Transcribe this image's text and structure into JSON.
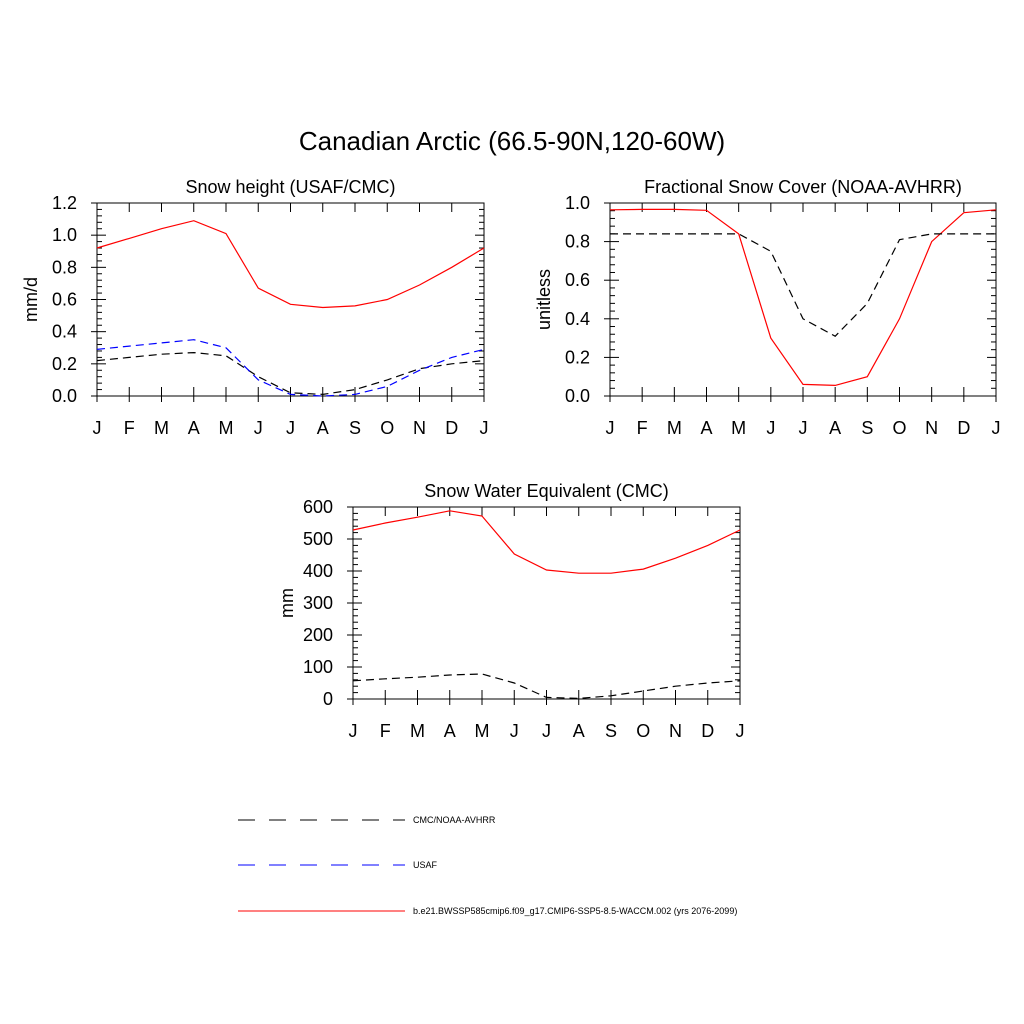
{
  "title": "Canadian Arctic (66.5-90N,120-60W)",
  "chart_data": [
    {
      "type": "line",
      "title": "Snow height (USAF/CMC)",
      "xlabel": "",
      "ylabel": "mm/d",
      "categories": [
        "J",
        "F",
        "M",
        "A",
        "M",
        "J",
        "J",
        "A",
        "S",
        "O",
        "N",
        "D",
        "J"
      ],
      "ylim": [
        0,
        1.2
      ],
      "yticks": [
        "0.0",
        "0.2",
        "0.4",
        "0.6",
        "0.8",
        "1.0",
        "1.2"
      ],
      "ytick_values": [
        0,
        0.2,
        0.4,
        0.6,
        0.8,
        1.0,
        1.2
      ],
      "series": [
        {
          "ref": "model",
          "values": [
            0.92,
            0.98,
            1.04,
            1.09,
            1.01,
            0.67,
            0.57,
            0.55,
            0.56,
            0.6,
            0.69,
            0.8,
            0.92
          ]
        },
        {
          "ref": "cmc",
          "values": [
            0.22,
            0.24,
            0.26,
            0.27,
            0.25,
            0.12,
            0.02,
            0.01,
            0.04,
            0.1,
            0.17,
            0.2,
            0.22
          ]
        },
        {
          "ref": "usaf",
          "values": [
            0.29,
            0.31,
            0.33,
            0.35,
            0.3,
            0.1,
            0.01,
            0.0,
            0.01,
            0.06,
            0.16,
            0.24,
            0.29
          ]
        }
      ]
    },
    {
      "type": "line",
      "title": "Fractional Snow Cover (NOAA-AVHRR)",
      "xlabel": "",
      "ylabel": "unitless",
      "categories": [
        "J",
        "F",
        "M",
        "A",
        "M",
        "J",
        "J",
        "A",
        "S",
        "O",
        "N",
        "D",
        "J"
      ],
      "ylim": [
        0,
        1.0
      ],
      "yticks": [
        "0.0",
        "0.2",
        "0.4",
        "0.6",
        "0.8",
        "1.0"
      ],
      "ytick_values": [
        0,
        0.2,
        0.4,
        0.6,
        0.8,
        1.0
      ],
      "series": [
        {
          "ref": "model",
          "values": [
            0.965,
            0.967,
            0.967,
            0.962,
            0.84,
            0.3,
            0.06,
            0.055,
            0.1,
            0.4,
            0.8,
            0.95,
            0.965
          ]
        },
        {
          "ref": "cmc",
          "values": [
            0.84,
            0.84,
            0.84,
            0.84,
            0.84,
            0.75,
            0.4,
            0.31,
            0.48,
            0.81,
            0.84,
            0.84,
            0.84
          ]
        }
      ]
    },
    {
      "type": "line",
      "title": "Snow Water Equivalent (CMC)",
      "xlabel": "",
      "ylabel": "mm",
      "categories": [
        "J",
        "F",
        "M",
        "A",
        "M",
        "J",
        "J",
        "A",
        "S",
        "O",
        "N",
        "D",
        "J"
      ],
      "ylim": [
        0,
        600
      ],
      "yticks": [
        "0",
        "100",
        "200",
        "300",
        "400",
        "500",
        "600"
      ],
      "ytick_values": [
        0,
        100,
        200,
        300,
        400,
        500,
        600
      ],
      "series": [
        {
          "ref": "model",
          "values": [
            528,
            550,
            568,
            588,
            572,
            453,
            403,
            393,
            393,
            406,
            440,
            480,
            528
          ]
        },
        {
          "ref": "cmc",
          "values": [
            57,
            63,
            68,
            75,
            78,
            50,
            5,
            2,
            10,
            25,
            40,
            50,
            57
          ]
        }
      ]
    }
  ],
  "legend": [
    {
      "key": "cmc",
      "label": "CMC/NOAA-AVHRR",
      "color": "#000000",
      "dash": "dashed"
    },
    {
      "key": "usaf",
      "label": "USAF",
      "color": "#0000ff",
      "dash": "dashed"
    },
    {
      "key": "model",
      "label": "b.e21.BWSSP585cmip6.f09_g17.CMIP6-SSP5-8.5-WACCM.002 (yrs 2076-2099)",
      "color": "#ff0000",
      "dash": "solid"
    }
  ]
}
